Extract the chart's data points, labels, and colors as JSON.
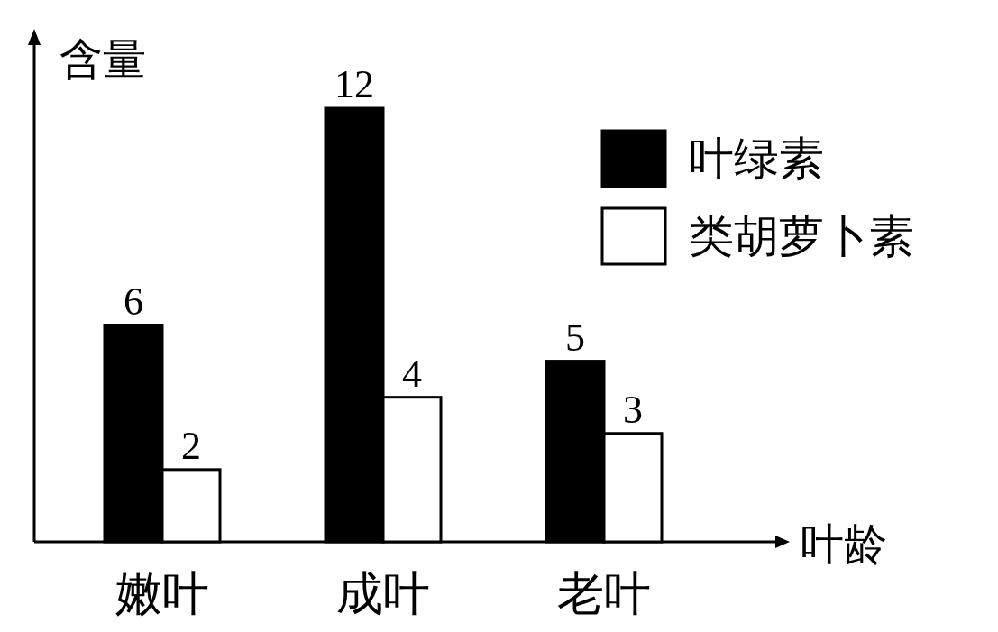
{
  "chart_data": {
    "type": "bar",
    "ylabel": "含量",
    "xlabel": "叶龄",
    "categories": [
      "嫩叶",
      "成叶",
      "老叶"
    ],
    "series": [
      {
        "name": "叶绿素",
        "color": "#000000",
        "values": [
          6,
          12,
          5
        ]
      },
      {
        "name": "类胡萝卜素",
        "color": "#ffffff",
        "values": [
          2,
          4,
          3
        ]
      }
    ],
    "data_labels": true,
    "legend": "top right"
  }
}
